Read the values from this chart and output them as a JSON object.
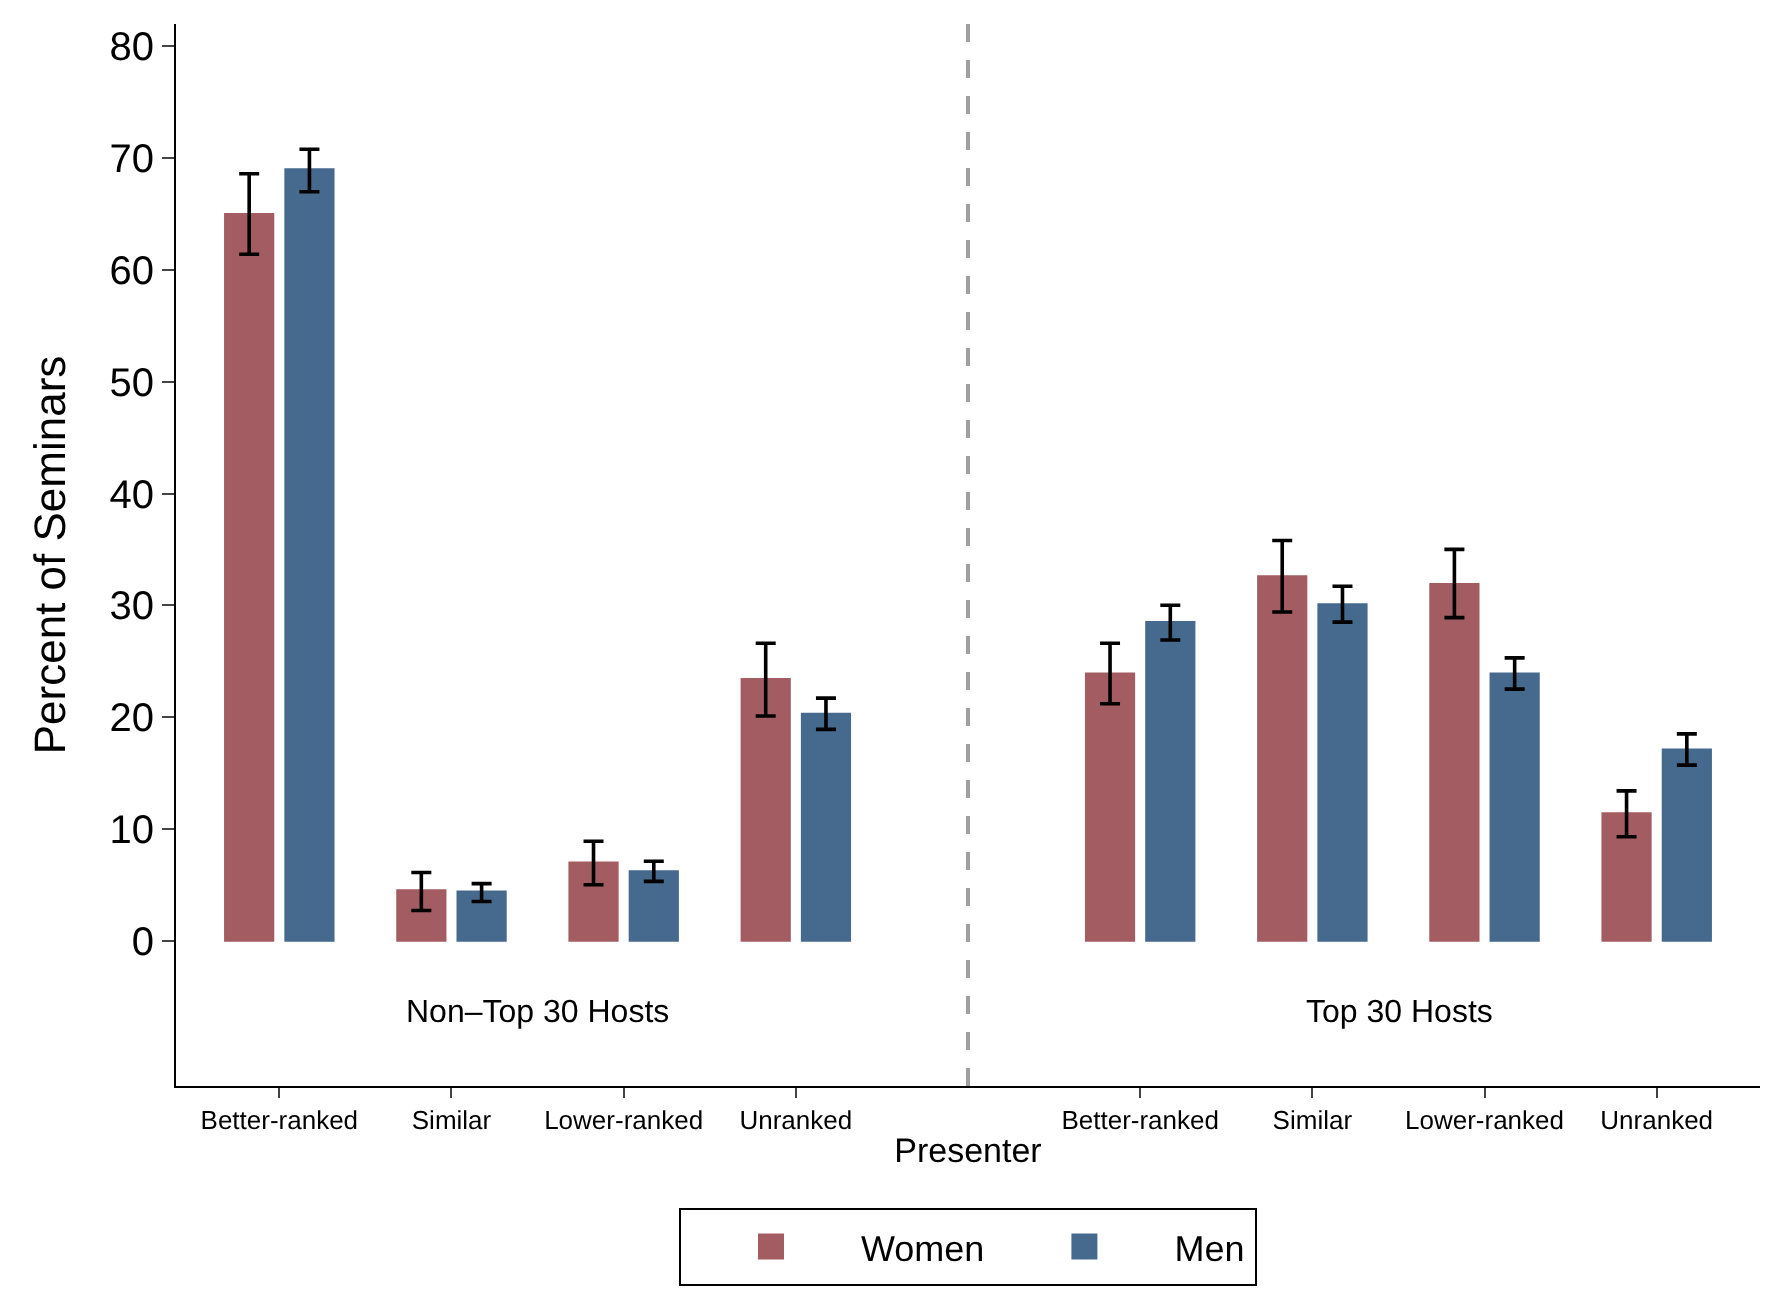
{
  "chart_data": {
    "type": "bar",
    "xlabel": "Presenter",
    "ylabel": "Percent of Seminars",
    "categories": [
      "Better-ranked",
      "Similar",
      "Lower-ranked",
      "Unranked",
      null,
      "Better-ranked",
      "Similar",
      "Lower-ranked",
      "Unranked"
    ],
    "series": [
      {
        "name": "Women",
        "color": "#a35c61",
        "values": [
          65.0,
          4.5,
          7.0,
          23.4,
          null,
          23.9,
          32.6,
          31.9,
          11.4
        ],
        "errors": [
          [
            61.4,
            68.6
          ],
          [
            2.7,
            6.1
          ],
          [
            5.0,
            8.9
          ],
          [
            20.1,
            26.6
          ],
          null,
          [
            21.2,
            26.6
          ],
          [
            29.4,
            35.8
          ],
          [
            28.9,
            35.0
          ],
          [
            9.3,
            13.4
          ]
        ]
      },
      {
        "name": "Men",
        "color": "#466a8e",
        "values": [
          69.0,
          4.4,
          6.2,
          20.3,
          null,
          28.5,
          30.1,
          23.9,
          17.1
        ],
        "errors": [
          [
            67.0,
            70.8
          ],
          [
            3.5,
            5.1
          ],
          [
            5.3,
            7.1
          ],
          [
            18.9,
            21.7
          ],
          null,
          [
            26.9,
            30.0
          ],
          [
            28.5,
            31.7
          ],
          [
            22.5,
            25.3
          ],
          [
            15.7,
            18.5
          ]
        ]
      }
    ],
    "ylim": [
      -13,
      82
    ],
    "yticks": [
      0,
      10,
      20,
      30,
      40,
      50,
      60,
      70,
      80
    ],
    "annotations": [
      "Non–Top 30 Hosts",
      "Top 30 Hosts"
    ],
    "legend": "bottom"
  }
}
